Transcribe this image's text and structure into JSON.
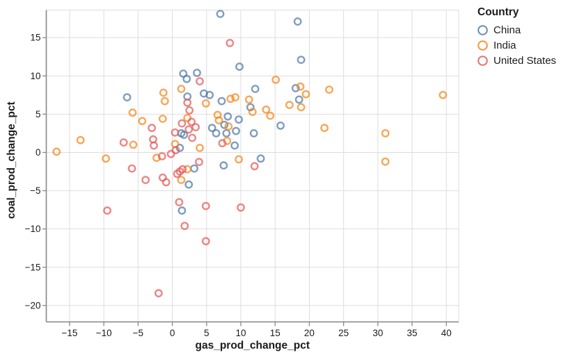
{
  "page": {
    "background": "#ffffff"
  },
  "legend": {
    "title": "Country",
    "entries": [
      {
        "label": "China",
        "color": "#4c78a8"
      },
      {
        "label": "India",
        "color": "#f58518"
      },
      {
        "label": "United States",
        "color": "#e45756"
      }
    ]
  },
  "style": {
    "grid_color": "#dddddd",
    "view_border_color": "#dddddd",
    "axis_domain_color": "#888888",
    "tick_color": "#888888",
    "label_color": "#1b1b1b",
    "point_stroke_opacity": 0.72,
    "legend_symbol_opacity": 0.85
  },
  "chart_data": {
    "type": "scatter",
    "title": "",
    "xlabel": "gas_prod_change_pct",
    "ylabel": "coal_prod_change_pct",
    "x_domain": [
      -18.4,
      41.8
    ],
    "y_domain": [
      -22.1,
      18.6
    ],
    "x_ticks": [
      -15,
      -10,
      -5,
      0,
      5,
      10,
      15,
      20,
      25,
      30,
      35,
      40
    ],
    "y_ticks": [
      15,
      10,
      5,
      0,
      -5,
      -10,
      -15,
      -20
    ],
    "grid": true,
    "legend_position": "top-right",
    "series": [
      {
        "name": "China",
        "color": "#4c78a8",
        "points": [
          [
            7.0,
            18.1
          ],
          [
            18.3,
            17.1
          ],
          [
            18.8,
            12.1
          ],
          [
            9.8,
            11.2
          ],
          [
            1.6,
            10.3
          ],
          [
            3.6,
            10.4
          ],
          [
            2.1,
            9.6
          ],
          [
            12.1,
            8.3
          ],
          [
            18.0,
            8.4
          ],
          [
            -6.6,
            7.2
          ],
          [
            2.2,
            7.3
          ],
          [
            4.6,
            7.7
          ],
          [
            5.45,
            7.5
          ],
          [
            18.5,
            6.9
          ],
          [
            7.2,
            6.7
          ],
          [
            11.4,
            5.9
          ],
          [
            8.1,
            4.7
          ],
          [
            7.6,
            3.6
          ],
          [
            9.7,
            4.3
          ],
          [
            15.8,
            3.5
          ],
          [
            5.8,
            3.2
          ],
          [
            6.4,
            2.5
          ],
          [
            7.9,
            2.5
          ],
          [
            9.3,
            2.8
          ],
          [
            11.9,
            2.5
          ],
          [
            1.3,
            2.5
          ],
          [
            1.7,
            2.3
          ],
          [
            9.1,
            0.9
          ],
          [
            1.1,
            0.6
          ],
          [
            7.5,
            -1.7
          ],
          [
            3.2,
            -2.1
          ],
          [
            12.9,
            -0.8
          ],
          [
            2.4,
            -4.2
          ],
          [
            1.4,
            -7.6
          ]
        ]
      },
      {
        "name": "India",
        "color": "#f58518",
        "points": [
          [
            -16.9,
            0.1
          ],
          [
            -13.4,
            1.6
          ],
          [
            -9.7,
            -0.8
          ],
          [
            -5.8,
            5.2
          ],
          [
            -5.7,
            1.0
          ],
          [
            -4.4,
            4.1
          ],
          [
            -2.3,
            -0.7
          ],
          [
            -1.4,
            4.4
          ],
          [
            -1.3,
            7.8
          ],
          [
            -1.1,
            6.7
          ],
          [
            0.4,
            1.1
          ],
          [
            1.3,
            8.3
          ],
          [
            2.2,
            4.5
          ],
          [
            4.0,
            0.6
          ],
          [
            4.9,
            6.4
          ],
          [
            6.6,
            4.9
          ],
          [
            6.8,
            4.2
          ],
          [
            8.0,
            1.5
          ],
          [
            8.2,
            3.4
          ],
          [
            8.5,
            7.0
          ],
          [
            9.2,
            7.2
          ],
          [
            9.7,
            -0.9
          ],
          [
            11.2,
            6.9
          ],
          [
            11.7,
            5.3
          ],
          [
            13.7,
            5.6
          ],
          [
            14.3,
            4.8
          ],
          [
            15.1,
            9.5
          ],
          [
            17.1,
            6.2
          ],
          [
            18.7,
            8.6
          ],
          [
            19.5,
            7.6
          ],
          [
            18.8,
            5.9
          ],
          [
            22.9,
            8.2
          ],
          [
            22.2,
            3.2
          ],
          [
            31.1,
            2.5
          ],
          [
            31.1,
            -1.2
          ],
          [
            39.5,
            7.5
          ],
          [
            2.2,
            -2.2
          ],
          [
            1.3,
            -3.6
          ]
        ]
      },
      {
        "name": "United States",
        "color": "#e45756",
        "points": [
          [
            8.4,
            14.3
          ],
          [
            4.0,
            9.3
          ],
          [
            2.2,
            6.5
          ],
          [
            2.5,
            5.5
          ],
          [
            -3.0,
            3.2
          ],
          [
            -7.1,
            1.3
          ],
          [
            -2.8,
            1.7
          ],
          [
            -2.7,
            0.9
          ],
          [
            0.5,
            0.3
          ],
          [
            -0.2,
            -0.2
          ],
          [
            -1.5,
            -0.5
          ],
          [
            -5.9,
            -2.1
          ],
          [
            -3.9,
            -3.6
          ],
          [
            -1.4,
            -3.3
          ],
          [
            -0.9,
            -3.9
          ],
          [
            0.7,
            -2.8
          ],
          [
            1.1,
            -2.5
          ],
          [
            1.5,
            -2.2
          ],
          [
            3.9,
            -1.25
          ],
          [
            12.0,
            -1.8
          ],
          [
            1.0,
            -6.5
          ],
          [
            4.9,
            -7.0
          ],
          [
            10.0,
            -7.2
          ],
          [
            1.8,
            -9.6
          ],
          [
            4.9,
            -11.6
          ],
          [
            -2.0,
            -18.4
          ],
          [
            -9.5,
            -7.6
          ],
          [
            1.4,
            3.8
          ],
          [
            2.8,
            4.0
          ],
          [
            3.4,
            3.3
          ],
          [
            2.4,
            3.0
          ],
          [
            2.9,
            1.9
          ],
          [
            7.3,
            1.2
          ],
          [
            0.4,
            2.6
          ]
        ]
      }
    ]
  }
}
